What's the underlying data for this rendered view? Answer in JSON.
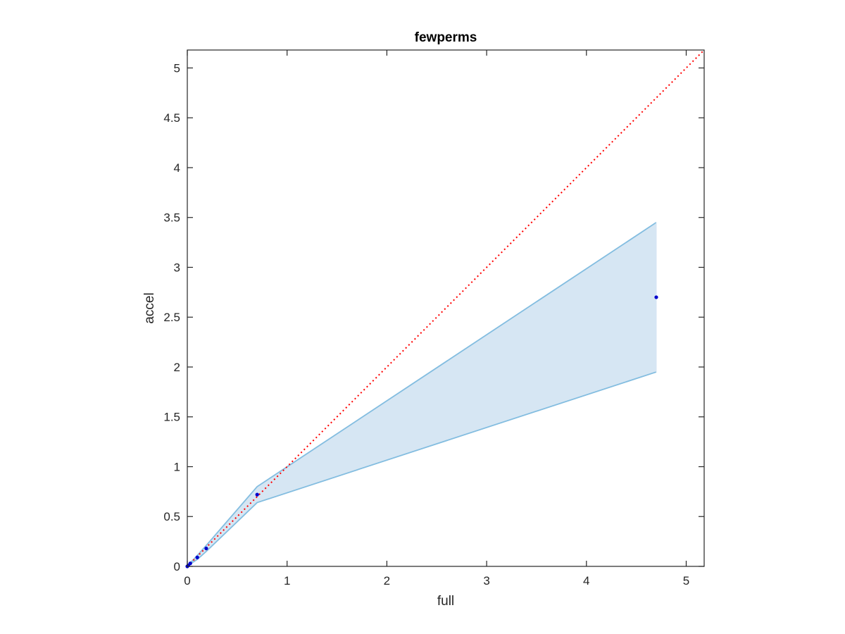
{
  "chart_data": {
    "type": "area",
    "title": "fewperms",
    "xlabel": "full",
    "ylabel": "accel",
    "xlim": [
      0,
      5.18
    ],
    "ylim": [
      0,
      5.18
    ],
    "xticks": [
      0,
      1,
      2,
      3,
      4,
      5
    ],
    "yticks": [
      0,
      0.5,
      1,
      1.5,
      2,
      2.5,
      3,
      3.5,
      4,
      4.5,
      5
    ],
    "xtick_labels": [
      "0",
      "1",
      "2",
      "3",
      "4",
      "5"
    ],
    "ytick_labels": [
      "0",
      "0.5",
      "1",
      "1.5",
      "2",
      "2.5",
      "3",
      "3.5",
      "4",
      "4.5",
      "5"
    ],
    "grid": false,
    "band": {
      "x": [
        0,
        0.01,
        0.03,
        0.1,
        0.19,
        0.7,
        4.7
      ],
      "upper": [
        0,
        0.012,
        0.035,
        0.11,
        0.21,
        0.8,
        3.45
      ],
      "lower": [
        0,
        0.008,
        0.025,
        0.07,
        0.15,
        0.64,
        1.95
      ],
      "fill_color": "#d6e6f3",
      "line_color": "#83bde0"
    },
    "points": {
      "x": [
        0,
        0.01,
        0.03,
        0.1,
        0.19,
        0.7,
        4.7
      ],
      "y": [
        0,
        0.01,
        0.03,
        0.09,
        0.18,
        0.72,
        2.7
      ],
      "color": "#0000cc"
    },
    "reference_line": {
      "x": [
        0,
        5.18
      ],
      "y": [
        0,
        5.18
      ],
      "style": "dotted",
      "color": "#ff0000"
    }
  }
}
